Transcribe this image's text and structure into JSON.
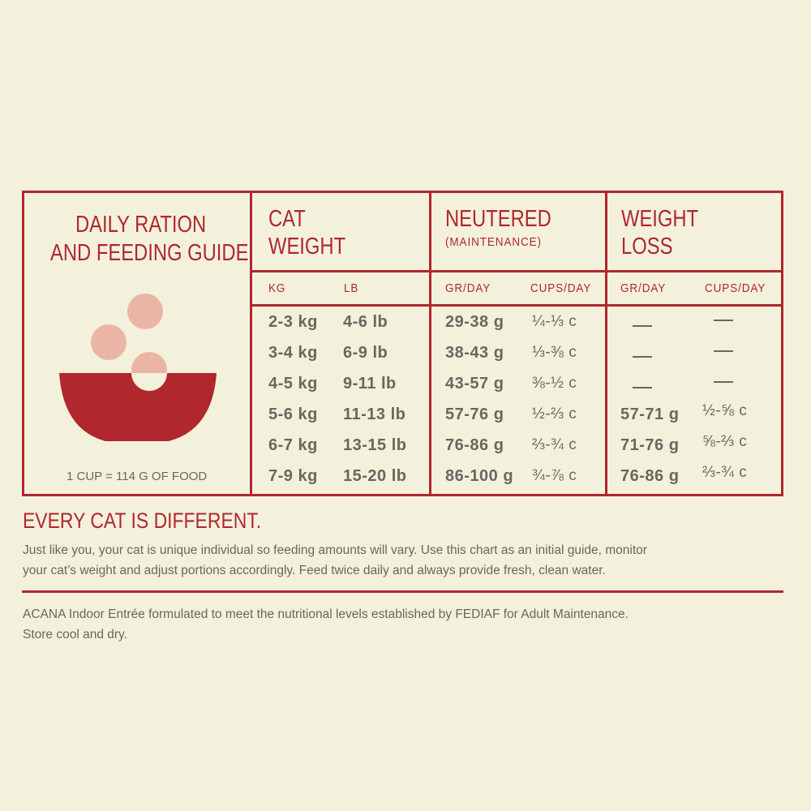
{
  "colors": {
    "accent": "#b0272d",
    "background": "#f3f1dc",
    "text": "#6b6660",
    "kibble": "#ebb5a6"
  },
  "guide": {
    "title_line1": "DAILY RATION",
    "title_line2": "AND FEEDING GUIDE",
    "icon": "bowl-with-kibble-icon",
    "cup_note": "1 CUP = 114 G OF FOOD"
  },
  "table": {
    "headers": {
      "cat_weight_1": "CAT",
      "cat_weight_2": "WEIGHT",
      "neutered": "NEUTERED",
      "neutered_sub": "(MAINTENANCE)",
      "weight_loss_1": "WEIGHT",
      "weight_loss_2": "LOSS"
    },
    "subheaders": [
      "KG",
      "LB",
      "GR/DAY",
      "CUPS/DAY",
      "GR/DAY",
      "CUPS/DAY"
    ],
    "rows": [
      {
        "kg": "2-3 kg",
        "lb": "4-6 lb",
        "n_gr": "29-38 g",
        "n_cups": "¼-⅓ c",
        "w_gr": "—",
        "w_cups": "—"
      },
      {
        "kg": "3-4 kg",
        "lb": "6-9 lb",
        "n_gr": "38-43 g",
        "n_cups": "⅓-⅜ c",
        "w_gr": "—",
        "w_cups": "—"
      },
      {
        "kg": "4-5 kg",
        "lb": "9-11 lb",
        "n_gr": "43-57 g",
        "n_cups": "⅜-½ c",
        "w_gr": "—",
        "w_cups": "—"
      },
      {
        "kg": "5-6 kg",
        "lb": "11-13 lb",
        "n_gr": "57-76 g",
        "n_cups": "½-⅔ c",
        "w_gr": "57-71 g",
        "w_cups": "½-⅝ c"
      },
      {
        "kg": "6-7 kg",
        "lb": "13-15 lb",
        "n_gr": "76-86 g",
        "n_cups": "⅔-¾ c",
        "w_gr": "71-76 g",
        "w_cups": "⅝-⅔ c"
      },
      {
        "kg": "7-9 kg",
        "lb": "15-20 lb",
        "n_gr": "86-100 g",
        "n_cups": "¾-⅞ c",
        "w_gr": "76-86 g",
        "w_cups": "⅔-¾ c"
      }
    ]
  },
  "notice": {
    "heading": "EVERY CAT IS DIFFERENT.",
    "line1": "Just like you, your cat is unique individual so feeding amounts will vary. Use this chart as an initial guide, monitor",
    "line2": "your cat’s weight and adjust portions accordingly. Feed twice daily and always provide fresh, clean water."
  },
  "footer": {
    "line1": "ACANA Indoor Entrée formulated to meet the nutritional levels established by FEDIAF  for Adult Maintenance.",
    "line2": "Store cool and dry."
  }
}
